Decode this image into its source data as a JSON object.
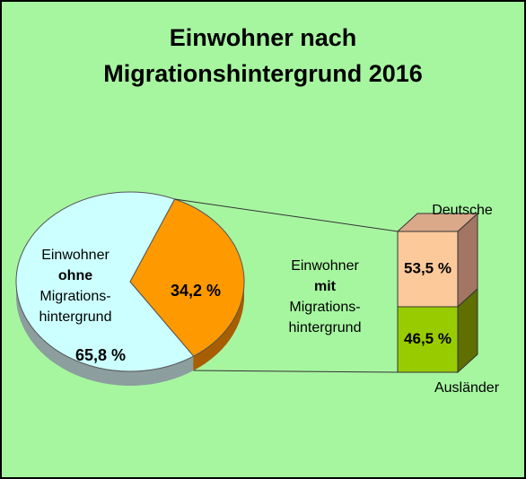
{
  "chart_data": {
    "type": "pie-of-bar",
    "title": [
      "Einwohner  nach",
      "Migrationshintergrund  2016"
    ],
    "categories": [
      [
        "Einwohner",
        "ohne",
        "Migrations-",
        "hintergrund"
      ],
      [
        "Einwohner",
        "mit",
        "Migrations-",
        "hintergrund"
      ]
    ],
    "values": [
      65.8,
      34.2
    ],
    "value_labels": [
      "65,8 %",
      "34,2 %"
    ],
    "colors": [
      "#ccffff",
      "#ff9900"
    ],
    "breakdown": {
      "categories": [
        "Deutsche",
        "Ausländer"
      ],
      "values": [
        53.5,
        46.5
      ],
      "value_labels": [
        "53,5 %",
        "46,5 %"
      ],
      "colors": [
        "#fcc99b",
        "#99cc00"
      ]
    }
  }
}
